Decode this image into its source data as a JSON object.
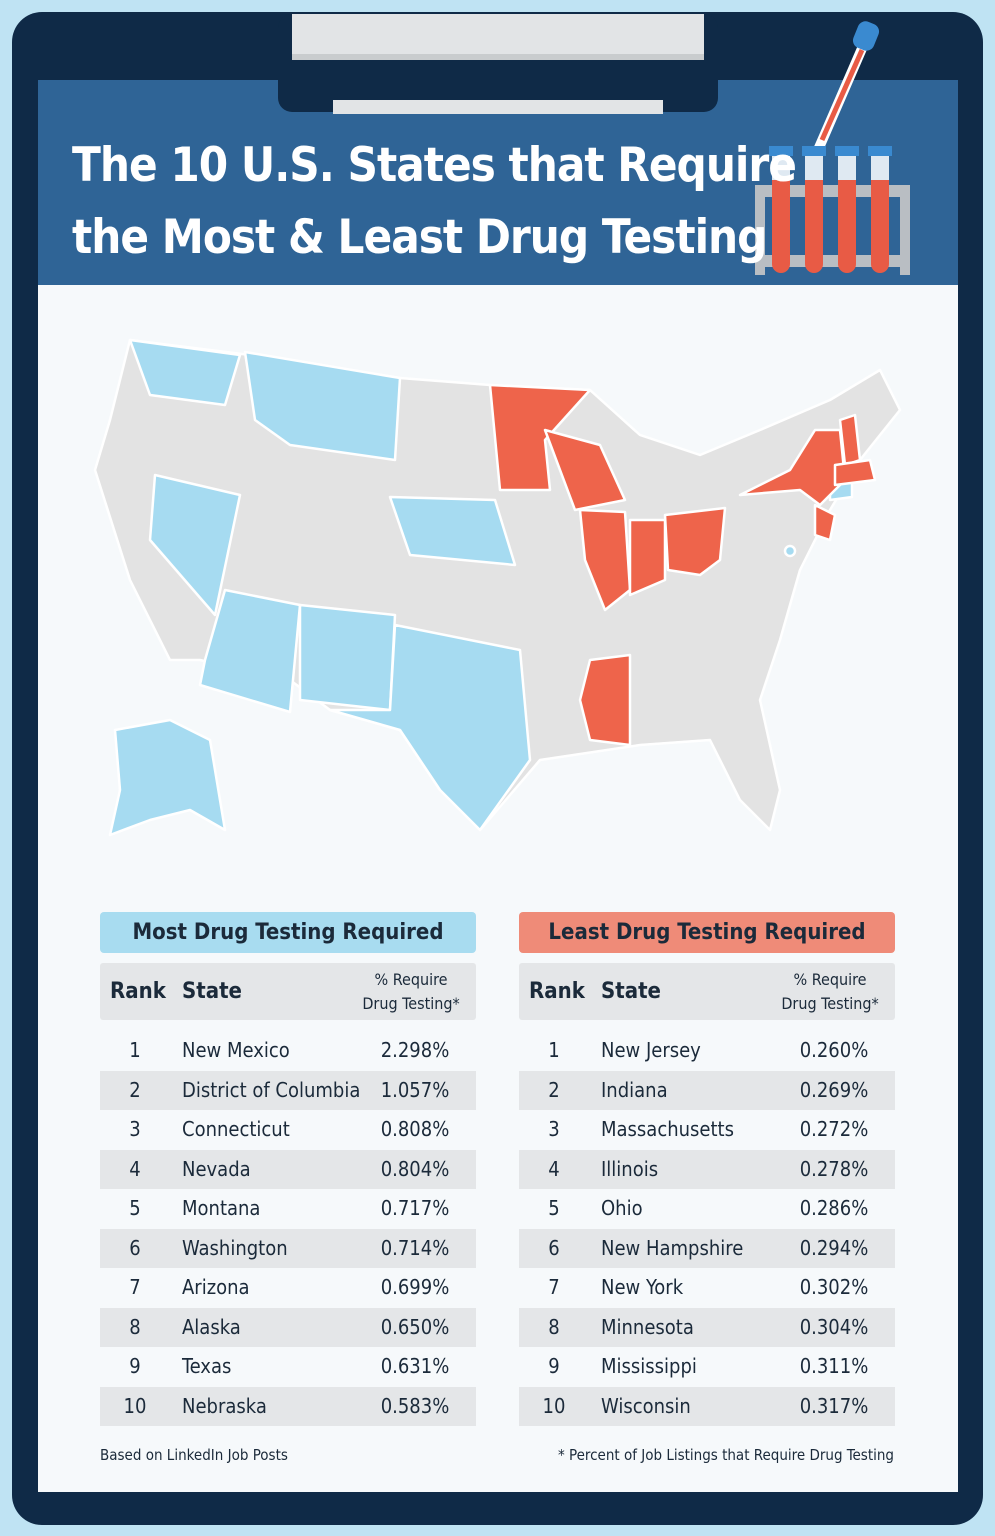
{
  "header": {
    "title_lines": [
      "The 10 U.S. States that Require",
      "the Most & Least Drug Testing"
    ]
  },
  "tables": [
    {
      "heading": "Most Drug Testing Required",
      "columns": [
        "Rank",
        "State",
        "% Require Drug Testing*"
      ],
      "rows": [
        [
          1,
          "New Mexico",
          "2.298%"
        ],
        [
          2,
          "District of Columbia",
          "1.057%"
        ],
        [
          3,
          "Connecticut",
          "0.808%"
        ],
        [
          4,
          "Nevada",
          "0.804%"
        ],
        [
          5,
          "Montana",
          "0.717%"
        ],
        [
          6,
          "Washington",
          "0.714%"
        ],
        [
          7,
          "Arizona",
          "0.699%"
        ],
        [
          8,
          "Alaska",
          "0.650%"
        ],
        [
          9,
          "Texas",
          "0.631%"
        ],
        [
          10,
          "Nebraska",
          "0.583%"
        ]
      ]
    },
    {
      "heading": "Least Drug Testing Required",
      "columns": [
        "Rank",
        "State",
        "% Require Drug Testing*"
      ],
      "rows": [
        [
          1,
          "New Jersey",
          "0.260%"
        ],
        [
          2,
          "Indiana",
          "0.269%"
        ],
        [
          3,
          "Massachusetts",
          "0.272%"
        ],
        [
          4,
          "Illinois",
          "0.278%"
        ],
        [
          5,
          "Ohio",
          "0.286%"
        ],
        [
          6,
          "New Hampshire",
          "0.294%"
        ],
        [
          7,
          "New York",
          "0.302%"
        ],
        [
          8,
          "Minnesota",
          "0.304%"
        ],
        [
          9,
          "Mississippi",
          "0.311%"
        ],
        [
          10,
          "Wisconsin",
          "0.317%"
        ]
      ]
    }
  ],
  "footer": {
    "source": "Based on LinkedIn Job Posts",
    "note": "* Percent of Job Listings that Require Drug Testing"
  }
}
